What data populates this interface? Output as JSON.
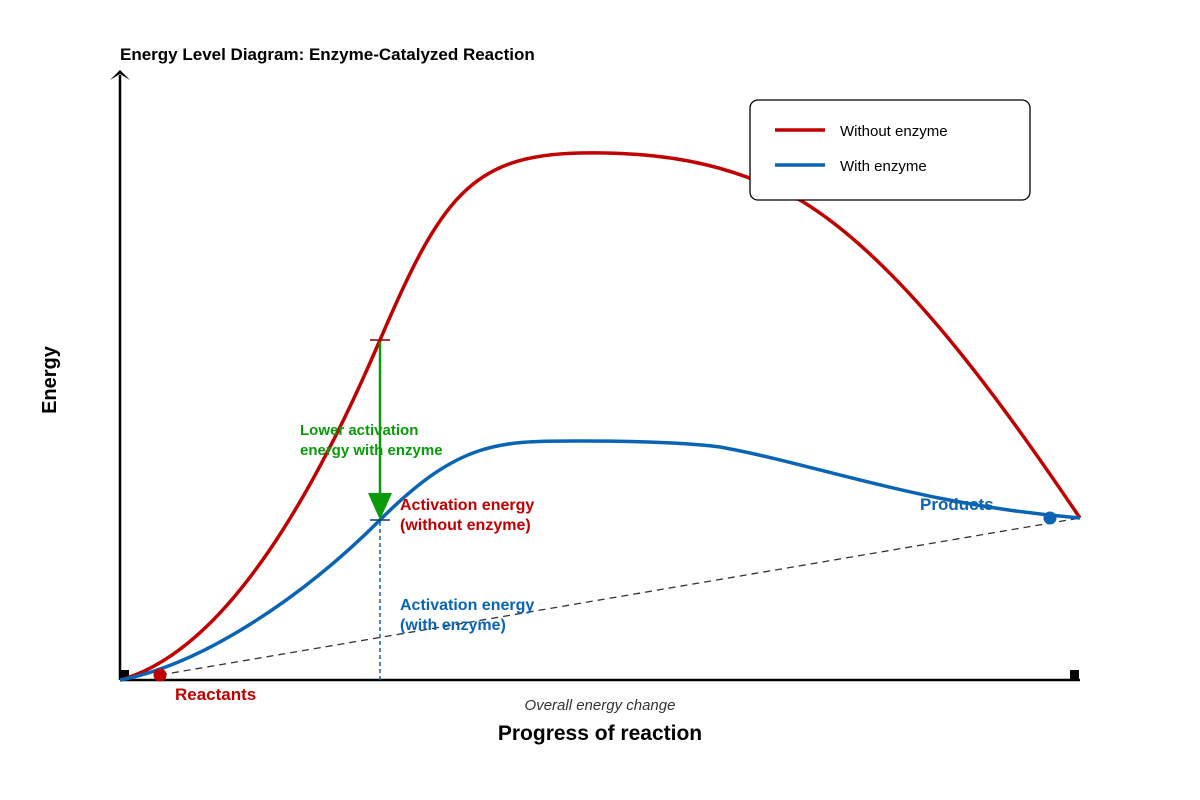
{
  "title": "Energy Level Diagram: Enzyme-Catalyzed Reaction",
  "y_axis_label": "Energy",
  "x_axis_label": "Progress of reaction",
  "x_axis_note": "Overall energy change",
  "legend": [
    {
      "label": "Without enzyme",
      "color": "#c00000"
    },
    {
      "label": "With enzyme",
      "color": "#0a64b4"
    }
  ],
  "annotations": {
    "lower_activation": [
      "Lower activation",
      "energy with enzyme"
    ],
    "activation_without": [
      "Activation energy",
      "(without enzyme)"
    ],
    "activation_with": [
      "Activation energy",
      "(with enzyme)"
    ]
  },
  "points": {
    "reactants": "Reactants",
    "products": "Products"
  }
}
